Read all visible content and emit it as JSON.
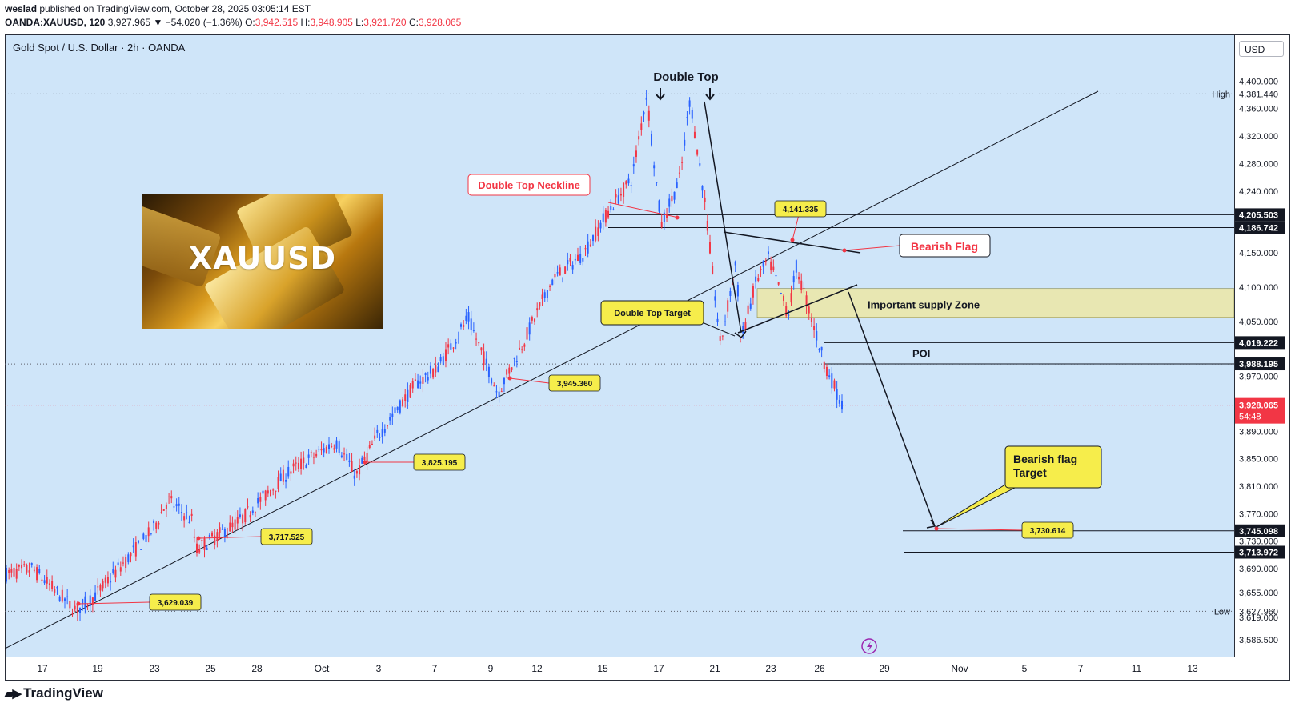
{
  "header": {
    "publisher": "weslad",
    "published_text": "published on TradingView.com, October 28, 2025 03:05:14 EST",
    "symbol": "OANDA:XAUUSD, 120",
    "last": "3,927.965",
    "change": "▼ −54.020 (−1.36%)",
    "o_label": "O:",
    "o_value": "3,942.515",
    "h_label": "H:",
    "h_value": "3,948.905",
    "l_label": "L:",
    "l_value": "3,921.720",
    "c_label": "C:",
    "c_value": "3,928.065"
  },
  "chart_title": "Gold Spot / U.S. Dollar · 2h · OANDA",
  "currency": "USD",
  "thumbnail_title": "XAUUSD",
  "branding": "TradingView",
  "colors": {
    "up": "#2962ff",
    "down": "#f23645",
    "plot_bg": "#cfe5f9",
    "zone": "#e8e7b2",
    "label_yellow": "#f6ed4b"
  },
  "chart_data": {
    "type": "candlestick",
    "title": "Gold Spot / U.S. Dollar · 2h · OANDA",
    "ylim": [
      3562,
      4468
    ],
    "x_ticks": [
      "17",
      "19",
      "23",
      "25",
      "28",
      "Oct",
      "3",
      "7",
      "9",
      "12",
      "15",
      "17",
      "21",
      "23",
      "26",
      "29",
      "Nov",
      "5",
      "7",
      "11",
      "13"
    ],
    "y_ticks": [
      "4,400.000",
      "4,360.000",
      "4,320.000",
      "4,280.000",
      "4,240.000",
      "4,150.000",
      "4,100.000",
      "4,050.000",
      "3,970.000",
      "3,890.000",
      "3,850.000",
      "3,810.000",
      "3,770.000",
      "3,730.000",
      "3,690.000",
      "3,655.000",
      "3,619.000",
      "3,586.500"
    ],
    "price_path": [
      {
        "x": "Sep 16",
        "y": 3682
      },
      {
        "x": "Sep 17",
        "y": 3690
      },
      {
        "x": "Sep 18",
        "y": 3629
      },
      {
        "x": "Sep 19",
        "y": 3650
      },
      {
        "x": "Sep 22",
        "y": 3745
      },
      {
        "x": "Sep 23",
        "y": 3790
      },
      {
        "x": "Sep 24",
        "y": 3760
      },
      {
        "x": "Sep 25",
        "y": 3717.5
      },
      {
        "x": "Sep 26",
        "y": 3760
      },
      {
        "x": "Sep 29",
        "y": 3830
      },
      {
        "x": "Sep 30",
        "y": 3860
      },
      {
        "x": "Oct 1",
        "y": 3875
      },
      {
        "x": "Oct 2",
        "y": 3825.2
      },
      {
        "x": "Oct 3",
        "y": 3880
      },
      {
        "x": "Oct 6",
        "y": 3960
      },
      {
        "x": "Oct 7",
        "y": 3980
      },
      {
        "x": "Oct 8",
        "y": 4055
      },
      {
        "x": "Oct 9",
        "y": 3945.4
      },
      {
        "x": "Oct 10",
        "y": 4010
      },
      {
        "x": "Oct 13",
        "y": 4110
      },
      {
        "x": "Oct 14",
        "y": 4150
      },
      {
        "x": "Oct 15",
        "y": 4210
      },
      {
        "x": "Oct 16",
        "y": 4260
      },
      {
        "x": "Oct 17",
        "y": 4381.4
      },
      {
        "x": "Oct 17b",
        "y": 4190
      },
      {
        "x": "Oct 20",
        "y": 4260
      },
      {
        "x": "Oct 20b",
        "y": 4375
      },
      {
        "x": "Oct 21",
        "y": 4230
      },
      {
        "x": "Oct 21b",
        "y": 4015
      },
      {
        "x": "Oct 22",
        "y": 4140
      },
      {
        "x": "Oct 22b",
        "y": 4020
      },
      {
        "x": "Oct 23",
        "y": 4110
      },
      {
        "x": "Oct 24",
        "y": 4141.3
      },
      {
        "x": "Oct 24b",
        "y": 4060
      },
      {
        "x": "Oct 27",
        "y": 4130
      },
      {
        "x": "Oct 27b",
        "y": 4070
      },
      {
        "x": "Oct 28",
        "y": 3990
      },
      {
        "x": "Oct 28b",
        "y": 3928.1
      }
    ],
    "horizontal_levels": [
      {
        "label": "High",
        "value": "4,381.440"
      },
      {
        "label": "Low",
        "value": "3,627.960"
      }
    ],
    "price_tags": [
      {
        "value": "4,205.503",
        "kind": "level"
      },
      {
        "value": "4,186.742",
        "kind": "level"
      },
      {
        "value": "4,019.222",
        "kind": "level"
      },
      {
        "value": "3,988.195",
        "kind": "level"
      },
      {
        "value": "3,928.065",
        "kind": "current",
        "countdown": "54:48"
      },
      {
        "value": "3,745.098",
        "kind": "level"
      },
      {
        "value": "3,713.972",
        "kind": "level"
      }
    ],
    "point_labels": [
      "3,629.039",
      "3,717.525",
      "3,825.195",
      "3,945.360",
      "4,141.335",
      "3,730.614"
    ],
    "annotations": {
      "double_top": "Double Top",
      "neckline": "Double Top Neckline",
      "double_top_target": "Double Top Target",
      "bearish_flag": "Bearish Flag",
      "supply_zone": "Important supply Zone",
      "poi": "POI",
      "bearish_flag_target_line1": "Bearish flag",
      "bearish_flag_target_line2": "Target",
      "price_projection_value": "3,730.614"
    }
  }
}
